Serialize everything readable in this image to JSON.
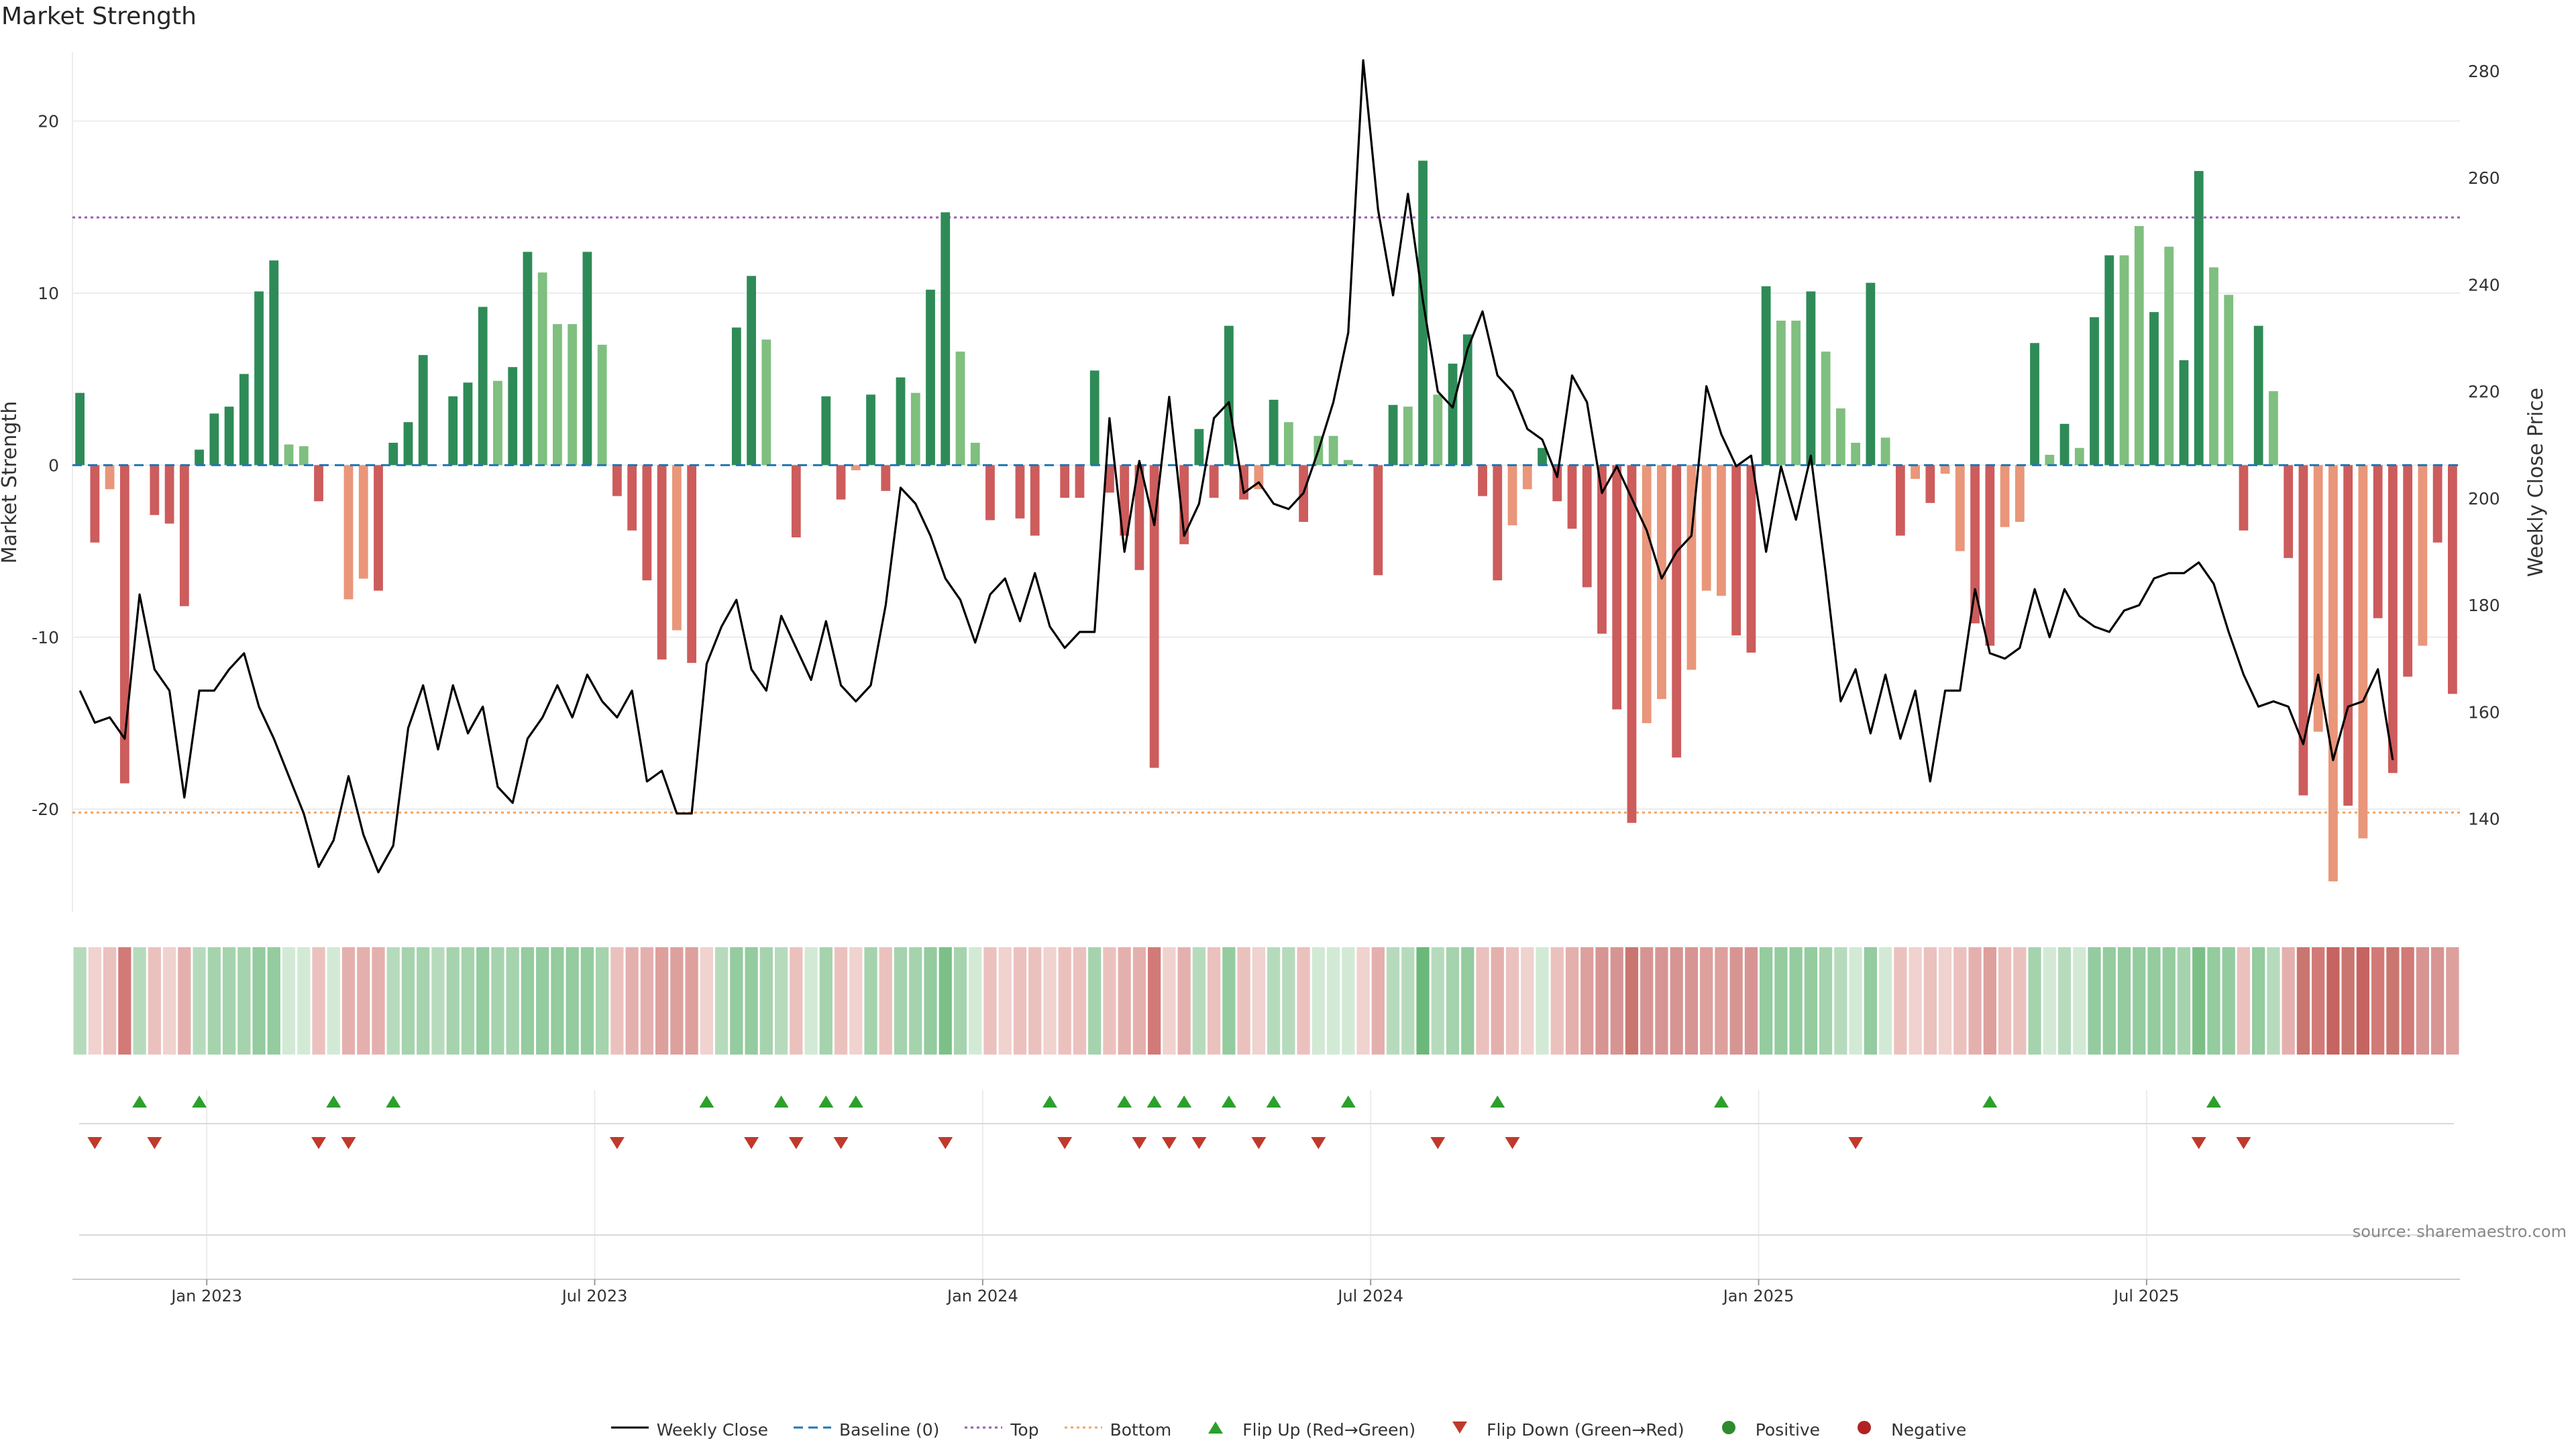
{
  "title": "Market Strength",
  "source": "source: sharemaestro.com",
  "colors": {
    "strong_green": "#2e8b57",
    "light_green": "#7fbf7f",
    "strong_red": "#cd5c5c",
    "light_red": "#e9967a",
    "close_line": "#000000",
    "baseline": "#1f77b4",
    "top": "#9b59b6",
    "bottom": "#f4a460",
    "flip_up": "#2ca02c",
    "flip_down": "#c0392b"
  },
  "legend": [
    {
      "label": "Weekly Close",
      "icon": "solid-line"
    },
    {
      "label": "Baseline (0)",
      "icon": "dashed-line"
    },
    {
      "label": "Top",
      "icon": "dotted-line"
    },
    {
      "label": "Bottom",
      "icon": "dotted-line"
    },
    {
      "label": "Flip Up (Red→Green)",
      "icon": "triangle-up"
    },
    {
      "label": "Flip Down (Green→Red)",
      "icon": "triangle-down"
    },
    {
      "label": "Positive",
      "icon": "circle"
    },
    {
      "label": "Negative",
      "icon": "circle"
    }
  ],
  "chart_data": {
    "type": "bar",
    "ylabel": "Market Strength",
    "y2label": "Weekly Close Price",
    "ylim": [
      -26,
      24
    ],
    "y_ticks": [
      -20,
      -10,
      0,
      10,
      20
    ],
    "y2lim": [
      122.5,
      283.5
    ],
    "y2_ticks": [
      140,
      160,
      180,
      200,
      220,
      240,
      260,
      280
    ],
    "x_ticks": [
      "Jan 2023",
      "Jul 2023",
      "Jan 2024",
      "Jul 2024",
      "Jan 2025",
      "Jul 2025"
    ],
    "x_tick_week_index": [
      9,
      35,
      61,
      87,
      113,
      139
    ],
    "top_line": 14.4,
    "bottom_line": -20.2,
    "grid": true,
    "strength": [
      4.2,
      -4.5,
      -1.4,
      -18.5,
      0,
      -2.9,
      -3.4,
      -8.2,
      0.9,
      3.0,
      3.4,
      5.3,
      10.1,
      11.9,
      1.2,
      1.1,
      -2.1,
      0,
      -7.8,
      -6.6,
      -7.3,
      1.3,
      2.5,
      6.4,
      0,
      4.0,
      4.8,
      9.2,
      4.9,
      5.7,
      12.4,
      11.2,
      8.2,
      8.2,
      12.4,
      7.0,
      -1.8,
      -3.8,
      -6.7,
      -11.3,
      -9.6,
      -11.5,
      0,
      0,
      8.0,
      11.0,
      7.3,
      0,
      -4.2,
      0,
      4.0,
      -2.0,
      -0.3,
      4.1,
      -1.5,
      5.1,
      4.2,
      10.2,
      14.7,
      6.6,
      1.3,
      -3.2,
      0,
      -3.1,
      -4.1,
      0,
      -1.9,
      -1.9,
      5.5,
      -1.6,
      -4.1,
      -6.1,
      -17.6,
      0,
      -4.6,
      2.1,
      -1.9,
      8.1,
      -2.0,
      -1.4,
      3.8,
      2.5,
      -3.3,
      1.7,
      1.7,
      0.3,
      0,
      -6.4,
      3.5,
      3.4,
      17.7,
      4.1,
      5.9,
      7.6,
      -1.8,
      -6.7,
      -3.5,
      -1.4,
      1.0,
      -2.1,
      -3.7,
      -7.1,
      -9.8,
      -14.2,
      -20.8,
      -15.0,
      -13.6,
      -17.0,
      -11.9,
      -7.3,
      -7.6,
      -9.9,
      -10.9,
      10.4,
      8.4,
      8.4,
      10.1,
      6.6,
      3.3,
      1.3,
      10.6,
      1.6,
      -4.1,
      -0.8,
      -2.2,
      -0.5,
      -5.0,
      -9.2,
      -10.5,
      -3.6,
      -3.3,
      7.1,
      0.6,
      2.4,
      1.0,
      8.6,
      12.2,
      12.2,
      13.9,
      8.9,
      12.7,
      6.1,
      17.1,
      11.5,
      9.9,
      -3.8,
      8.1,
      4.3,
      -5.4,
      -19.2,
      -15.5,
      -24.2,
      -19.8,
      -21.7,
      -8.9,
      -17.9,
      -12.3,
      -10.5,
      -4.5,
      -13.3
    ],
    "strength_shade": [
      "strong",
      "strong",
      "light",
      "strong",
      "strong",
      "strong",
      "strong",
      "strong",
      "strong",
      "strong",
      "strong",
      "strong",
      "strong",
      "strong",
      "light",
      "light",
      "strong",
      "strong",
      "light",
      "light",
      "strong",
      "strong",
      "strong",
      "strong",
      "strong",
      "strong",
      "strong",
      "strong",
      "light",
      "strong",
      "strong",
      "light",
      "light",
      "light",
      "strong",
      "light",
      "strong",
      "strong",
      "strong",
      "strong",
      "light",
      "strong",
      "strong",
      "strong",
      "strong",
      "strong",
      "light",
      "strong",
      "strong",
      "strong",
      "strong",
      "strong",
      "light",
      "strong",
      "strong",
      "strong",
      "light",
      "strong",
      "strong",
      "light",
      "light",
      "strong",
      "strong",
      "strong",
      "strong",
      "strong",
      "strong",
      "strong",
      "strong",
      "strong",
      "strong",
      "strong",
      "strong",
      "strong",
      "strong",
      "strong",
      "strong",
      "strong",
      "strong",
      "light",
      "strong",
      "light",
      "strong",
      "light",
      "light",
      "light",
      "strong",
      "strong",
      "strong",
      "light",
      "strong",
      "light",
      "strong",
      "strong",
      "strong",
      "strong",
      "light",
      "light",
      "strong",
      "strong",
      "strong",
      "strong",
      "strong",
      "strong",
      "strong",
      "light",
      "light",
      "strong",
      "light",
      "light",
      "light",
      "strong",
      "strong",
      "strong",
      "light",
      "light",
      "strong",
      "light",
      "light",
      "light",
      "strong",
      "light",
      "strong",
      "light",
      "strong",
      "light",
      "light",
      "strong",
      "strong",
      "light",
      "light",
      "strong",
      "light",
      "strong",
      "light",
      "strong",
      "strong",
      "light",
      "light",
      "strong",
      "light",
      "strong",
      "strong",
      "light",
      "light",
      "strong",
      "strong",
      "light",
      "strong",
      "strong",
      "light",
      "light",
      "strong",
      "light",
      "strong",
      "strong",
      "strong",
      "light",
      "strong"
    ],
    "weekly_close": [
      164,
      158,
      159,
      155,
      182,
      168,
      164,
      144,
      164,
      164,
      168,
      171,
      161,
      155,
      148,
      141,
      131,
      136,
      148,
      137,
      130,
      135,
      157,
      165,
      153,
      165,
      156,
      161,
      146,
      143,
      155,
      159,
      165,
      159,
      167,
      162,
      159,
      164,
      147,
      149,
      141,
      141,
      169,
      176,
      181,
      168,
      164,
      178,
      172,
      166,
      177,
      165,
      162,
      165,
      180,
      202,
      199,
      193,
      185,
      181,
      173,
      182,
      185,
      177,
      186,
      176,
      172,
      175,
      175,
      215,
      190,
      207,
      195,
      219,
      193,
      199,
      215,
      218,
      201,
      203,
      199,
      198,
      201,
      209,
      218,
      231,
      282,
      254,
      238,
      257,
      237,
      220,
      217,
      228,
      235,
      223,
      220,
      213,
      211,
      204,
      223,
      218,
      201,
      206,
      200,
      194,
      185,
      190,
      193,
      221,
      212,
      206,
      208,
      190,
      206,
      196,
      208,
      186,
      162,
      168,
      156,
      167,
      155,
      164,
      147,
      164,
      164,
      183,
      171,
      170,
      172,
      183,
      174,
      183,
      178,
      176,
      175,
      179,
      180,
      185,
      186,
      186,
      188,
      184,
      175,
      167,
      161,
      162,
      161,
      154,
      167,
      151,
      161,
      162,
      168,
      151
    ],
    "strip_shades": [
      "#b6dbbc",
      "#f0d2cf",
      "#ebc1be",
      "#d27a78",
      "#b6dbbc",
      "#ebc1be",
      "#f0d2cf",
      "#e4b0ad",
      "#b6dbbc",
      "#a5d3ad",
      "#a5d3ad",
      "#a5d3ad",
      "#94cb9f",
      "#94cb9f",
      "#d2ead5",
      "#d2ead5",
      "#ebc1be",
      "#d2ead5",
      "#e4b0ad",
      "#e4b0ad",
      "#e4b0ad",
      "#b6dbbc",
      "#a5d3ad",
      "#a5d3ad",
      "#b6dbbc",
      "#a5d3ad",
      "#a5d3ad",
      "#94cb9f",
      "#a5d3ad",
      "#a5d3ad",
      "#94cb9f",
      "#94cb9f",
      "#94cb9f",
      "#94cb9f",
      "#94cb9f",
      "#a5d3ad",
      "#ebc1be",
      "#e4b0ad",
      "#e4b0ad",
      "#dda09d",
      "#dda09d",
      "#dda09d",
      "#f0d2cf",
      "#b6dbbc",
      "#94cb9f",
      "#94cb9f",
      "#a5d3ad",
      "#b6dbbc",
      "#ebc1be",
      "#d2ead5",
      "#a5d3ad",
      "#ebc1be",
      "#f0d2cf",
      "#a5d3ad",
      "#ebc1be",
      "#a5d3ad",
      "#a5d3ad",
      "#94cb9f",
      "#7cc088",
      "#a5d3ad",
      "#d2ead5",
      "#ebc1be",
      "#f0d2cf",
      "#ebc1be",
      "#ebc1be",
      "#f0d2cf",
      "#ebc1be",
      "#ebc1be",
      "#a5d3ad",
      "#ebc1be",
      "#e4b0ad",
      "#e4b0ad",
      "#d27a78",
      "#f0d2cf",
      "#e4b0ad",
      "#b6dbbc",
      "#ebc1be",
      "#94cb9f",
      "#ebc1be",
      "#f0d2cf",
      "#b6dbbc",
      "#b6dbbc",
      "#ebc1be",
      "#d2ead5",
      "#d2ead5",
      "#d2ead5",
      "#f0d2cf",
      "#e4b0ad",
      "#b6dbbc",
      "#b6dbbc",
      "#6cb87b",
      "#b6dbbc",
      "#a5d3ad",
      "#94cb9f",
      "#ebc1be",
      "#e4b0ad",
      "#ebc1be",
      "#f0d2cf",
      "#d2ead5",
      "#ebc1be",
      "#e4b0ad",
      "#dda09d",
      "#d69593",
      "#d69593",
      "#c97670",
      "#d69593",
      "#d69593",
      "#d69593",
      "#d69593",
      "#dda09d",
      "#dda09d",
      "#d69593",
      "#d69593",
      "#94cb9f",
      "#94cb9f",
      "#94cb9f",
      "#94cb9f",
      "#a5d3ad",
      "#b6dbbc",
      "#d2ead5",
      "#94cb9f",
      "#d2ead5",
      "#ebc1be",
      "#f0d2cf",
      "#ebc1be",
      "#f0d2cf",
      "#ebc1be",
      "#e4b0ad",
      "#dda09d",
      "#ebc1be",
      "#ebc1be",
      "#a5d3ad",
      "#d2ead5",
      "#b6dbbc",
      "#d2ead5",
      "#94cb9f",
      "#94cb9f",
      "#94cb9f",
      "#94cb9f",
      "#94cb9f",
      "#94cb9f",
      "#a5d3ad",
      "#7cc088",
      "#94cb9f",
      "#94cb9f",
      "#ebc1be",
      "#94cb9f",
      "#b6dbbc",
      "#e4b0ad",
      "#c97670",
      "#d27a78",
      "#c66461",
      "#c97670",
      "#c66461",
      "#d27a78",
      "#c97670",
      "#d27a78",
      "#d69593",
      "#d69593",
      "#dda09d"
    ],
    "flip_up_weeks": [
      4,
      8,
      17,
      21,
      42,
      47,
      50,
      52,
      65,
      70,
      72,
      74,
      77,
      80,
      85,
      95,
      110,
      128,
      143
    ],
    "flip_down_weeks": [
      1,
      5,
      16,
      18,
      36,
      45,
      48,
      51,
      58,
      66,
      71,
      73,
      75,
      79,
      83,
      91,
      96,
      119,
      142,
      145
    ]
  }
}
